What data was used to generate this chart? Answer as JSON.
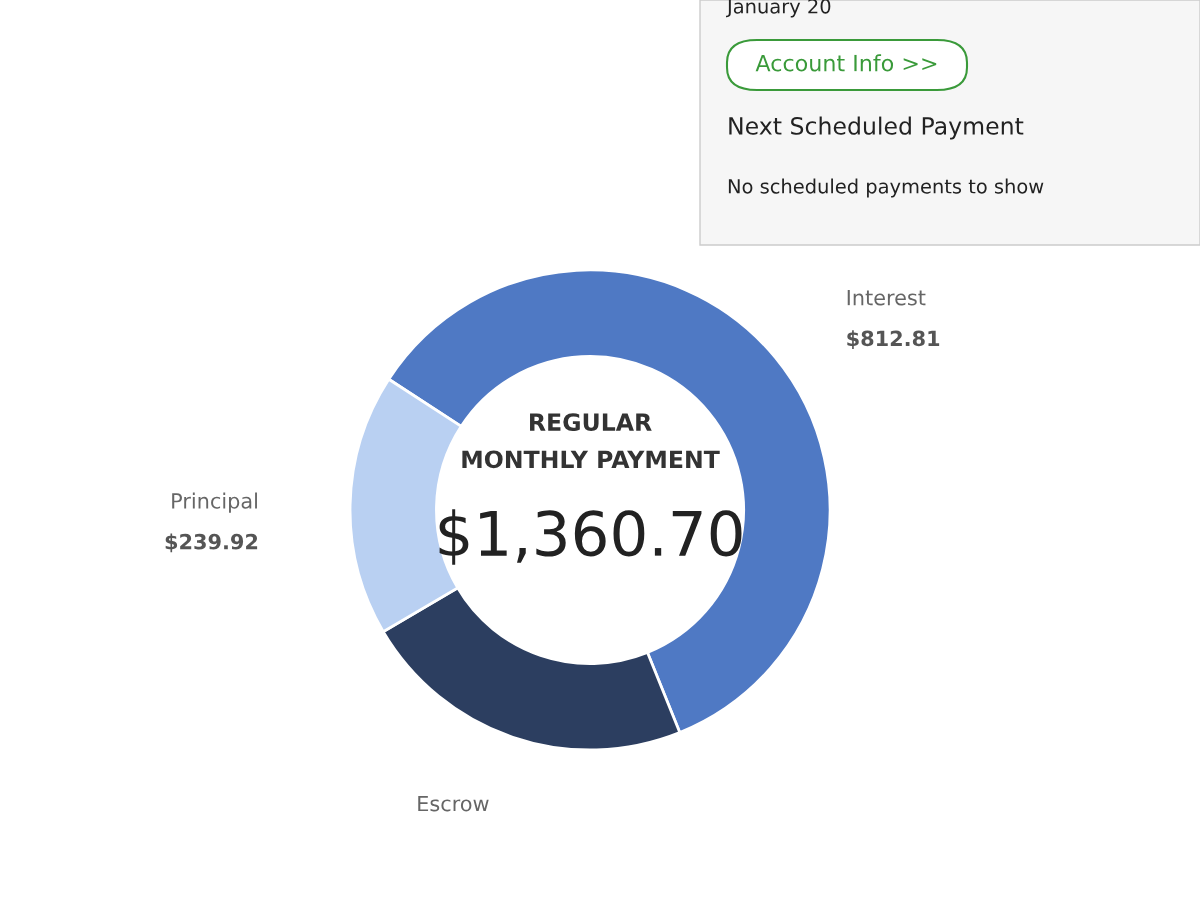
{
  "chart_data": {
    "type": "donut",
    "title": "REGULAR\nMONTHLY PAYMENT",
    "subtitle": "$1,360.70",
    "categories": [
      "Interest",
      "Escrow",
      "Principal"
    ],
    "values": [
      812.81,
      307.97,
      239.92
    ],
    "colors": [
      "#4f79c4",
      "#2c3e60",
      "#b9d0f2"
    ],
    "value_labels": [
      "$812.81",
      null,
      "$239.92"
    ],
    "annotations": [
      "January 20",
      "Account Info >>",
      "Next Scheduled Payment",
      "No scheduled payments to show"
    ],
    "legend": false
  }
}
